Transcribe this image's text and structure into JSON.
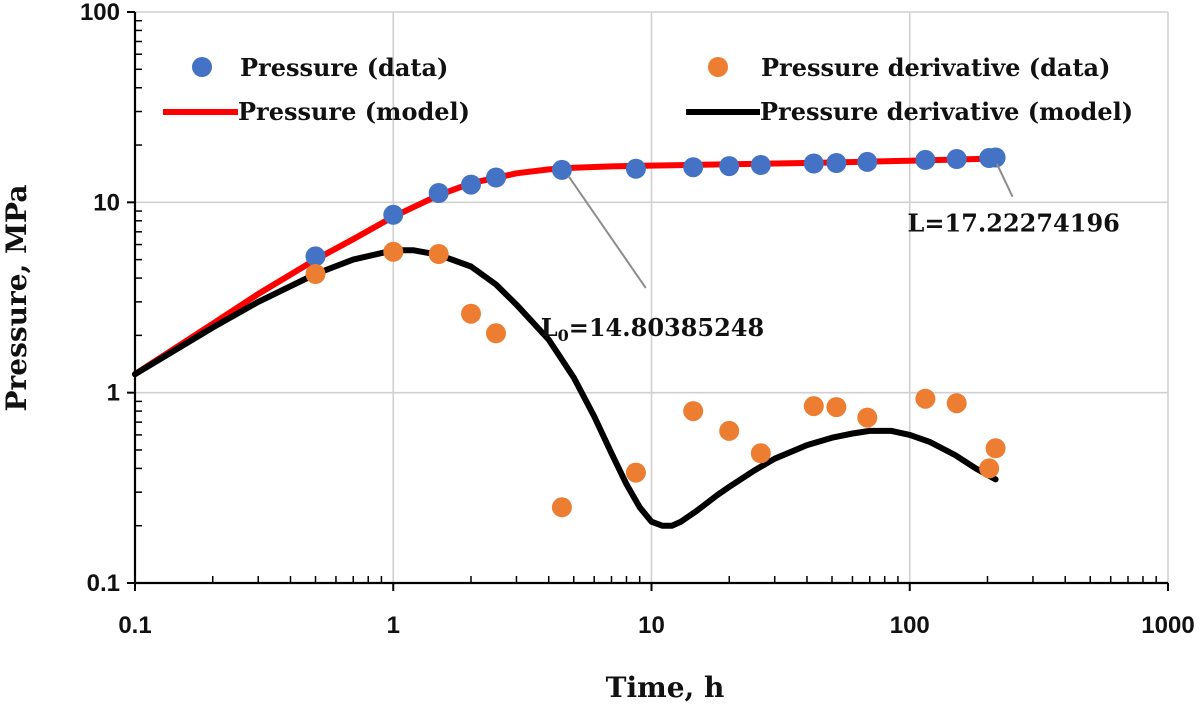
{
  "chart_data": {
    "type": "scatter",
    "xscale": "log",
    "yscale": "log",
    "xlim": [
      0.1,
      1000
    ],
    "ylim": [
      0.1,
      100
    ],
    "xlabel": "Time, h",
    "ylabel": "Pressure, MPa",
    "xticks": [
      "0.1",
      "1",
      "10",
      "100",
      "1000"
    ],
    "yticks": [
      "0.1",
      "1",
      "10",
      "100"
    ],
    "grid": "major",
    "legend_position": "top",
    "series": [
      {
        "name": "Pressure (data)",
        "kind": "scatter",
        "color": "#4472C4",
        "x": [
          0.5,
          1.0,
          1.5,
          2.0,
          2.5,
          4.5,
          8.7,
          14.5,
          20,
          26.5,
          42.5,
          52,
          68.5,
          115,
          152,
          203,
          215
        ],
        "y": [
          5.2,
          8.6,
          11.2,
          12.4,
          13.5,
          14.8,
          15.0,
          15.3,
          15.5,
          15.7,
          16.0,
          16.1,
          16.3,
          16.7,
          16.9,
          17.1,
          17.2
        ]
      },
      {
        "name": "Pressure derivative (data)",
        "kind": "scatter",
        "color": "#ED7D31",
        "x": [
          0.5,
          1.0,
          1.5,
          2.0,
          2.5,
          4.5,
          8.7,
          14.5,
          20,
          26.5,
          42.5,
          52,
          68.5,
          115,
          152,
          203,
          215
        ],
        "y": [
          4.2,
          5.5,
          5.35,
          2.6,
          2.05,
          0.25,
          0.38,
          0.8,
          0.63,
          0.48,
          0.85,
          0.84,
          0.74,
          0.93,
          0.88,
          0.4,
          0.51
        ]
      },
      {
        "name": "Pressure (model)",
        "kind": "line",
        "color": "#FF0000",
        "x": [
          0.1,
          0.2,
          0.3,
          0.5,
          0.7,
          1.0,
          1.5,
          2.0,
          3.0,
          4.0,
          5.0,
          7.0,
          10,
          20,
          50,
          100,
          215
        ],
        "y": [
          1.25,
          2.3,
          3.3,
          5.0,
          6.4,
          8.4,
          10.9,
          12.6,
          14.2,
          14.9,
          15.2,
          15.45,
          15.6,
          15.85,
          16.2,
          16.55,
          17.0
        ]
      },
      {
        "name": "Pressure derivative (model)",
        "kind": "line",
        "color": "#000000",
        "x": [
          0.1,
          0.2,
          0.3,
          0.5,
          0.7,
          1.0,
          1.2,
          1.5,
          2.0,
          2.5,
          3.0,
          4.0,
          5.0,
          6.0,
          7.0,
          8.0,
          9.0,
          10,
          11,
          12,
          13,
          15,
          18,
          20,
          25,
          30,
          40,
          50,
          60,
          70,
          85,
          100,
          120,
          150,
          180,
          215
        ],
        "y": [
          1.25,
          2.2,
          3.0,
          4.2,
          5.0,
          5.6,
          5.6,
          5.3,
          4.6,
          3.7,
          2.9,
          1.9,
          1.2,
          0.75,
          0.48,
          0.33,
          0.25,
          0.21,
          0.2,
          0.2,
          0.21,
          0.24,
          0.29,
          0.32,
          0.39,
          0.45,
          0.53,
          0.58,
          0.61,
          0.63,
          0.63,
          0.6,
          0.55,
          0.47,
          0.4,
          0.35
        ]
      }
    ],
    "annotations": [
      {
        "id": "L0",
        "base": "L",
        "sub": "0",
        "value": "=14.80385248",
        "text": "L0=14.80385248",
        "point": [
          4.6,
          14.8
        ],
        "label_anchor": [
          9.5,
          3.55
        ]
      },
      {
        "id": "L",
        "base": "L",
        "sub": "",
        "value": "=17.22274196",
        "text": "L=17.22274196",
        "point": [
          210,
          17.1
        ],
        "label_anchor": [
          250,
          10.7
        ]
      }
    ]
  }
}
